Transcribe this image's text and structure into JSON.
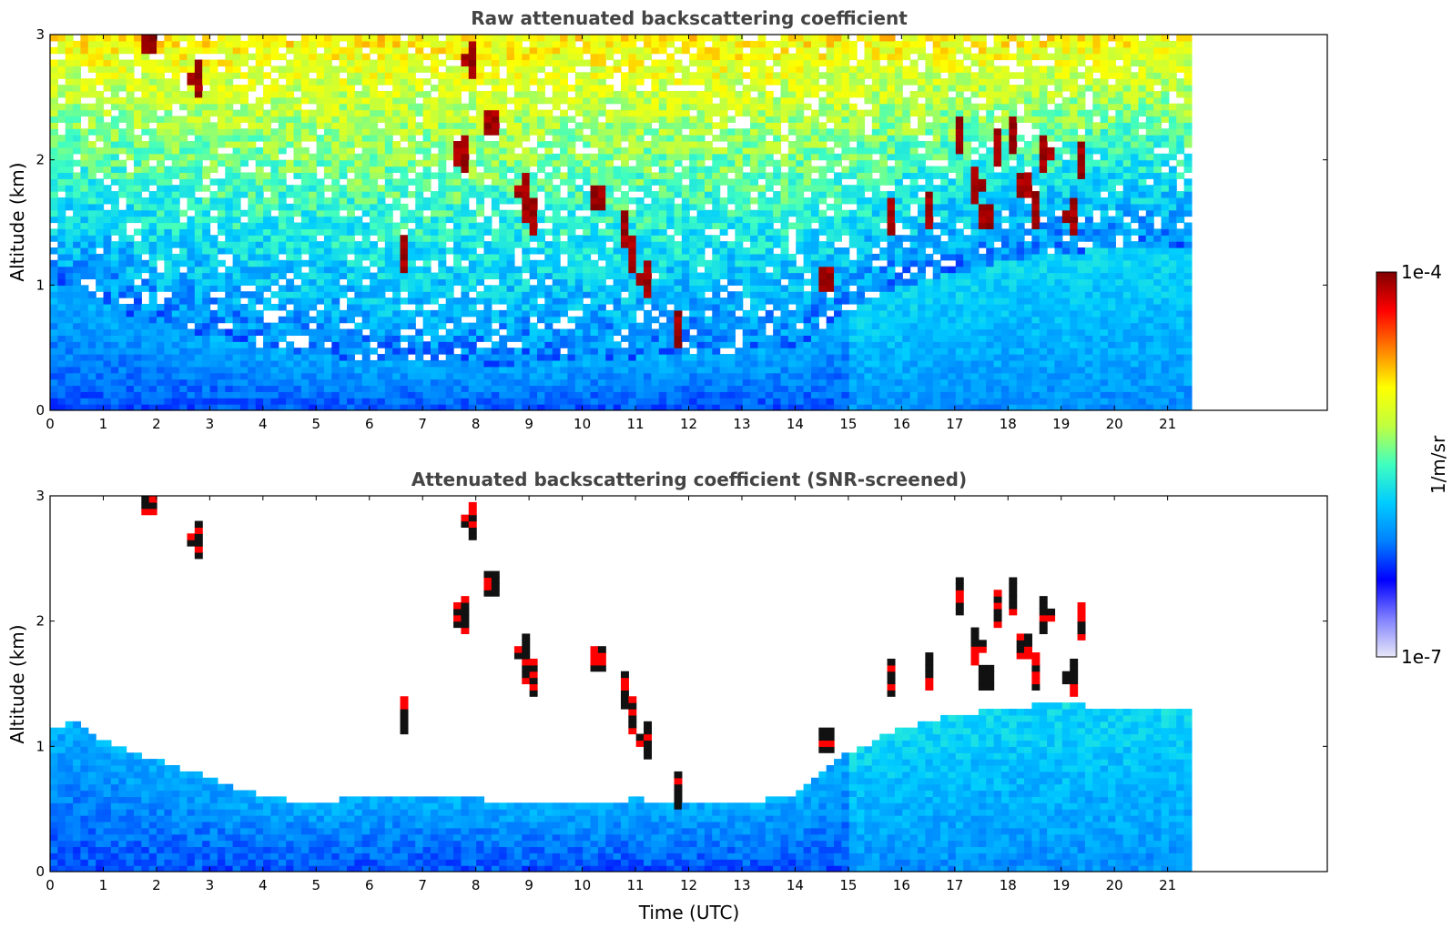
{
  "chart_data": [
    {
      "type": "heatmap",
      "title": "Raw attenuated backscattering coefficient",
      "xlabel": "",
      "ylabel": "Altitude (km)",
      "xlim": [
        0,
        24
      ],
      "ylim": [
        0,
        3
      ],
      "x_ticks": [
        0,
        1,
        2,
        3,
        4,
        5,
        6,
        7,
        8,
        9,
        10,
        11,
        12,
        13,
        14,
        15,
        16,
        17,
        18,
        19,
        20,
        21
      ],
      "y_ticks": [
        0,
        1,
        2,
        3
      ],
      "data_end_hour": 21.45,
      "grid": false,
      "colorbar_ref": "colorbar",
      "features": {
        "surface_layer_top_km": [
          [
            0,
            1.0
          ],
          [
            2,
            0.7
          ],
          [
            4,
            0.5
          ],
          [
            6,
            0.4
          ],
          [
            8,
            0.35
          ],
          [
            10,
            0.4
          ],
          [
            12,
            0.45
          ],
          [
            14,
            0.5
          ],
          [
            15,
            0.8
          ],
          [
            16,
            1.0
          ],
          [
            18,
            1.2
          ],
          [
            20,
            1.3
          ],
          [
            21.45,
            1.3
          ]
        ],
        "clouds": [
          {
            "t": 7.9,
            "z": 2.8
          },
          {
            "t": 8.3,
            "z": 2.3
          },
          {
            "t": 7.75,
            "z": 2.05
          },
          {
            "t": 8.9,
            "z": 1.75
          },
          {
            "t": 9.05,
            "z": 1.55
          },
          {
            "t": 10.3,
            "z": 1.7
          },
          {
            "t": 10.8,
            "z": 1.45
          },
          {
            "t": 10.95,
            "z": 1.25
          },
          {
            "t": 11.2,
            "z": 1.05
          },
          {
            "t": 11.8,
            "z": 0.65
          },
          {
            "t": 6.65,
            "z": 1.25
          },
          {
            "t": 2.75,
            "z": 2.65
          },
          {
            "t": 1.85,
            "z": 2.95
          },
          {
            "t": 15.8,
            "z": 1.55
          },
          {
            "t": 16.5,
            "z": 1.6
          },
          {
            "t": 17.1,
            "z": 2.2
          },
          {
            "t": 17.4,
            "z": 1.8
          },
          {
            "t": 17.6,
            "z": 1.55
          },
          {
            "t": 17.8,
            "z": 2.1
          },
          {
            "t": 18.1,
            "z": 2.2
          },
          {
            "t": 18.3,
            "z": 1.8
          },
          {
            "t": 18.5,
            "z": 1.6
          },
          {
            "t": 18.7,
            "z": 2.05
          },
          {
            "t": 19.2,
            "z": 1.55
          },
          {
            "t": 19.4,
            "z": 2.0
          },
          {
            "t": 14.6,
            "z": 1.05
          }
        ]
      }
    },
    {
      "type": "heatmap",
      "title": "Attenuated backscattering coefficient (SNR-screened)",
      "xlabel": "Time (UTC)",
      "ylabel": "Altitude (km)",
      "xlim": [
        0,
        24
      ],
      "ylim": [
        0,
        3
      ],
      "x_ticks": [
        0,
        1,
        2,
        3,
        4,
        5,
        6,
        7,
        8,
        9,
        10,
        11,
        12,
        13,
        14,
        15,
        16,
        17,
        18,
        19,
        20,
        21
      ],
      "y_ticks": [
        0,
        1,
        2,
        3
      ],
      "data_end_hour": 21.45,
      "grid": false,
      "colorbar_ref": "colorbar",
      "features": {
        "screened_layer_top_km": [
          [
            0,
            1.15
          ],
          [
            0.5,
            1.2
          ],
          [
            1,
            1.05
          ],
          [
            1.5,
            0.95
          ],
          [
            2,
            0.9
          ],
          [
            3,
            0.75
          ],
          [
            4,
            0.6
          ],
          [
            5,
            0.55
          ],
          [
            6,
            0.6
          ],
          [
            7,
            0.6
          ],
          [
            8,
            0.58
          ],
          [
            9,
            0.55
          ],
          [
            10,
            0.55
          ],
          [
            11,
            0.58
          ],
          [
            12,
            0.55
          ],
          [
            13,
            0.55
          ],
          [
            14,
            0.6
          ],
          [
            14.5,
            0.8
          ],
          [
            15,
            0.95
          ],
          [
            15.5,
            1.05
          ],
          [
            16,
            1.15
          ],
          [
            17,
            1.25
          ],
          [
            18,
            1.3
          ],
          [
            19,
            1.35
          ],
          [
            20,
            1.3
          ],
          [
            21,
            1.3
          ],
          [
            21.45,
            1.3
          ]
        ]
      }
    }
  ],
  "colorbar": {
    "label": "1/m/sr",
    "max_label": "1e-4",
    "min_label": "1e-7",
    "scale": "log",
    "range": [
      1e-07,
      0.0001
    ],
    "colormap": "jet",
    "colors": [
      "#e8e8f8",
      "#7f7fff",
      "#0000ff",
      "#0080ff",
      "#00ccff",
      "#40ffc0",
      "#c0ff40",
      "#ffff00",
      "#ff8000",
      "#ff0000",
      "#800000"
    ]
  }
}
